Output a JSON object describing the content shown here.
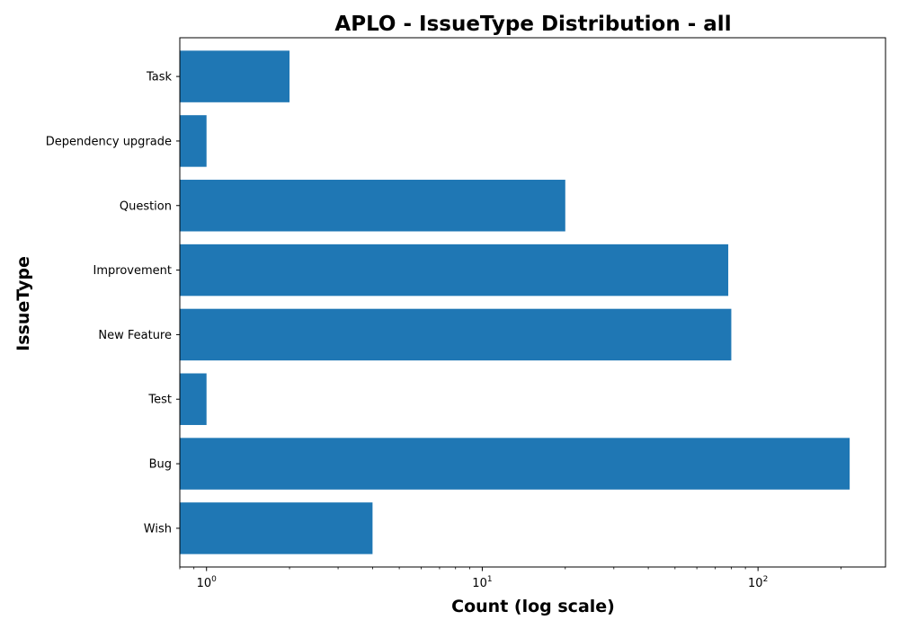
{
  "chart_data": {
    "type": "bar",
    "orientation": "horizontal",
    "title": "APLO - IssueType Distribution - all",
    "xlabel": "Count (log scale)",
    "ylabel": "IssueType",
    "xscale": "log",
    "xlim": [
      0.8,
      290
    ],
    "categories": [
      "Wish",
      "Bug",
      "Test",
      "New Feature",
      "Improvement",
      "Question",
      "Dependency upgrade",
      "Task"
    ],
    "values": [
      4,
      215,
      1,
      80,
      78,
      20,
      1,
      2
    ],
    "bar_color": "#1f77b4",
    "x_ticks": [
      {
        "value": 1,
        "base": "10",
        "exponent": "0"
      },
      {
        "value": 10,
        "base": "10",
        "exponent": "1"
      },
      {
        "value": 100,
        "base": "10",
        "exponent": "2"
      }
    ],
    "grid": false,
    "legend": "none"
  }
}
